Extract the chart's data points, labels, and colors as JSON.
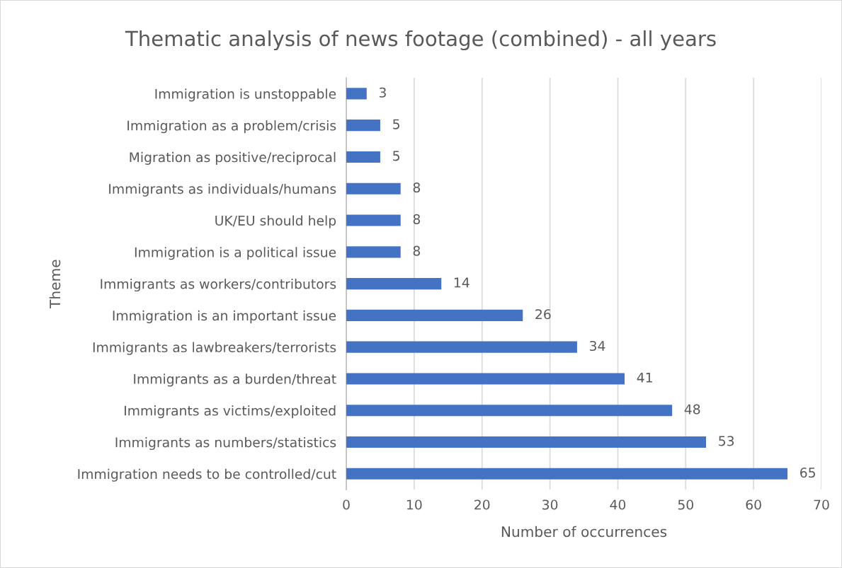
{
  "chart_data": {
    "type": "bar",
    "orientation": "horizontal",
    "title": "Thematic analysis of news footage (combined) - all years",
    "xlabel": "Number of occurrences",
    "ylabel": "Theme",
    "categories": [
      "Immigration is unstoppable",
      "Immigration as a problem/crisis",
      "Migration as positive/reciprocal",
      "Immigrants as individuals/humans",
      "UK/EU should help",
      "Immigration is a political issue",
      "Immigrants as workers/contributors",
      "Immigration is an important issue",
      "Immigrants as lawbreakers/terrorists",
      "Immigrants as a burden/threat",
      "Immigrants as victims/exploited",
      "Immigrants as numbers/statistics",
      "Immigration needs to be controlled/cut"
    ],
    "values": [
      3,
      5,
      5,
      8,
      8,
      8,
      14,
      26,
      34,
      41,
      48,
      53,
      65
    ],
    "color": "#4472c4",
    "xlim": [
      0,
      70
    ],
    "xticks": [
      0,
      10,
      20,
      30,
      40,
      50,
      60,
      70
    ],
    "grid": "x",
    "data_labels": true
  }
}
